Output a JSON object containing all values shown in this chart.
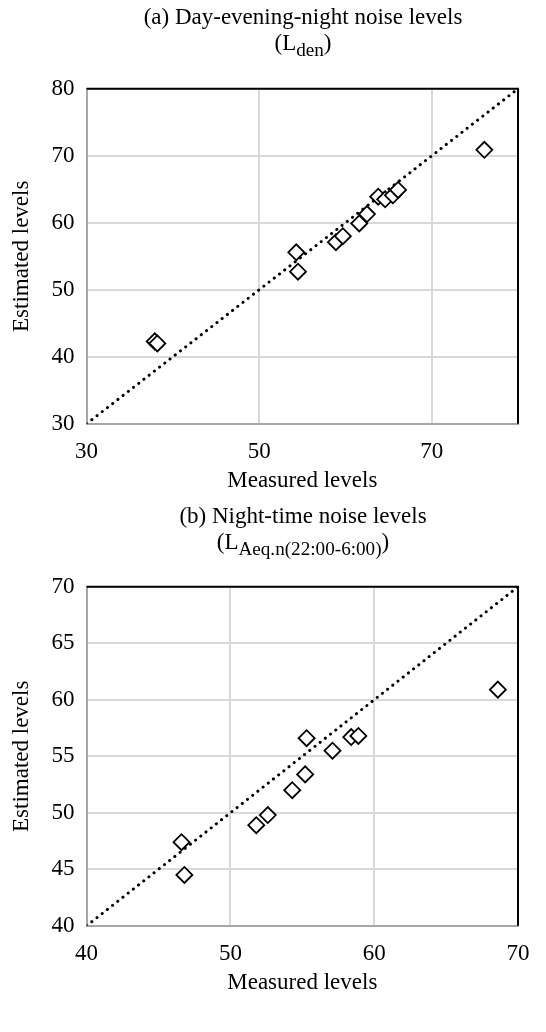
{
  "chart_data": [
    {
      "type": "scatter",
      "title": "(a) Day-evening-night noise levels\n(L$_{den}$)",
      "xlabel": "Measured levels",
      "ylabel": "Estimated levels",
      "xlim": [
        30,
        80
      ],
      "xticks": [
        30,
        50,
        70
      ],
      "ylim": [
        30,
        80
      ],
      "yticks": [
        30,
        40,
        50,
        60,
        70,
        80
      ],
      "grid": true,
      "legend": false,
      "marker": "diamond",
      "series": [
        {
          "color": "#000000",
          "x": [
            37.9,
            38.2,
            54.3,
            54.5,
            58.9,
            59.7,
            61.6,
            62.5,
            63.8,
            64.6,
            65.5,
            66.1,
            76.1
          ],
          "values": [
            42.3,
            42.0,
            55.6,
            52.7,
            57.1,
            58.0,
            59.9,
            61.3,
            63.9,
            63.5,
            64.1,
            64.9,
            70.9
          ]
        },
        {
          "type": "line",
          "color": "#000000",
          "marker": "none",
          "line_style": "dotted",
          "x": [
            30,
            80
          ],
          "values": [
            30,
            80
          ]
        }
      ]
    },
    {
      "type": "scatter",
      "title": "(b) Night-time noise levels\n(L$_{Aeq.n(22:00-6:00)}$)",
      "xlabel": "Measured levels",
      "ylabel": "Estimated levels",
      "xlim": [
        40,
        70
      ],
      "xticks": [
        40,
        50,
        60,
        70
      ],
      "ylim": [
        40,
        70
      ],
      "yticks": [
        40,
        45,
        50,
        55,
        60,
        65,
        70
      ],
      "grid": true,
      "legend": false,
      "marker": "diamond",
      "series": [
        {
          "color": "#000000",
          "x": [
            46.6,
            46.8,
            51.8,
            52.6,
            54.3,
            55.2,
            55.3,
            57.1,
            58.4,
            58.9,
            68.6
          ],
          "values": [
            47.4,
            44.5,
            48.9,
            49.8,
            52.0,
            53.4,
            56.6,
            55.5,
            56.7,
            56.8,
            60.9
          ]
        },
        {
          "type": "line",
          "color": "#000000",
          "marker": "none",
          "line_style": "dotted",
          "x": [
            40,
            70
          ],
          "values": [
            40,
            70
          ]
        }
      ]
    }
  ]
}
